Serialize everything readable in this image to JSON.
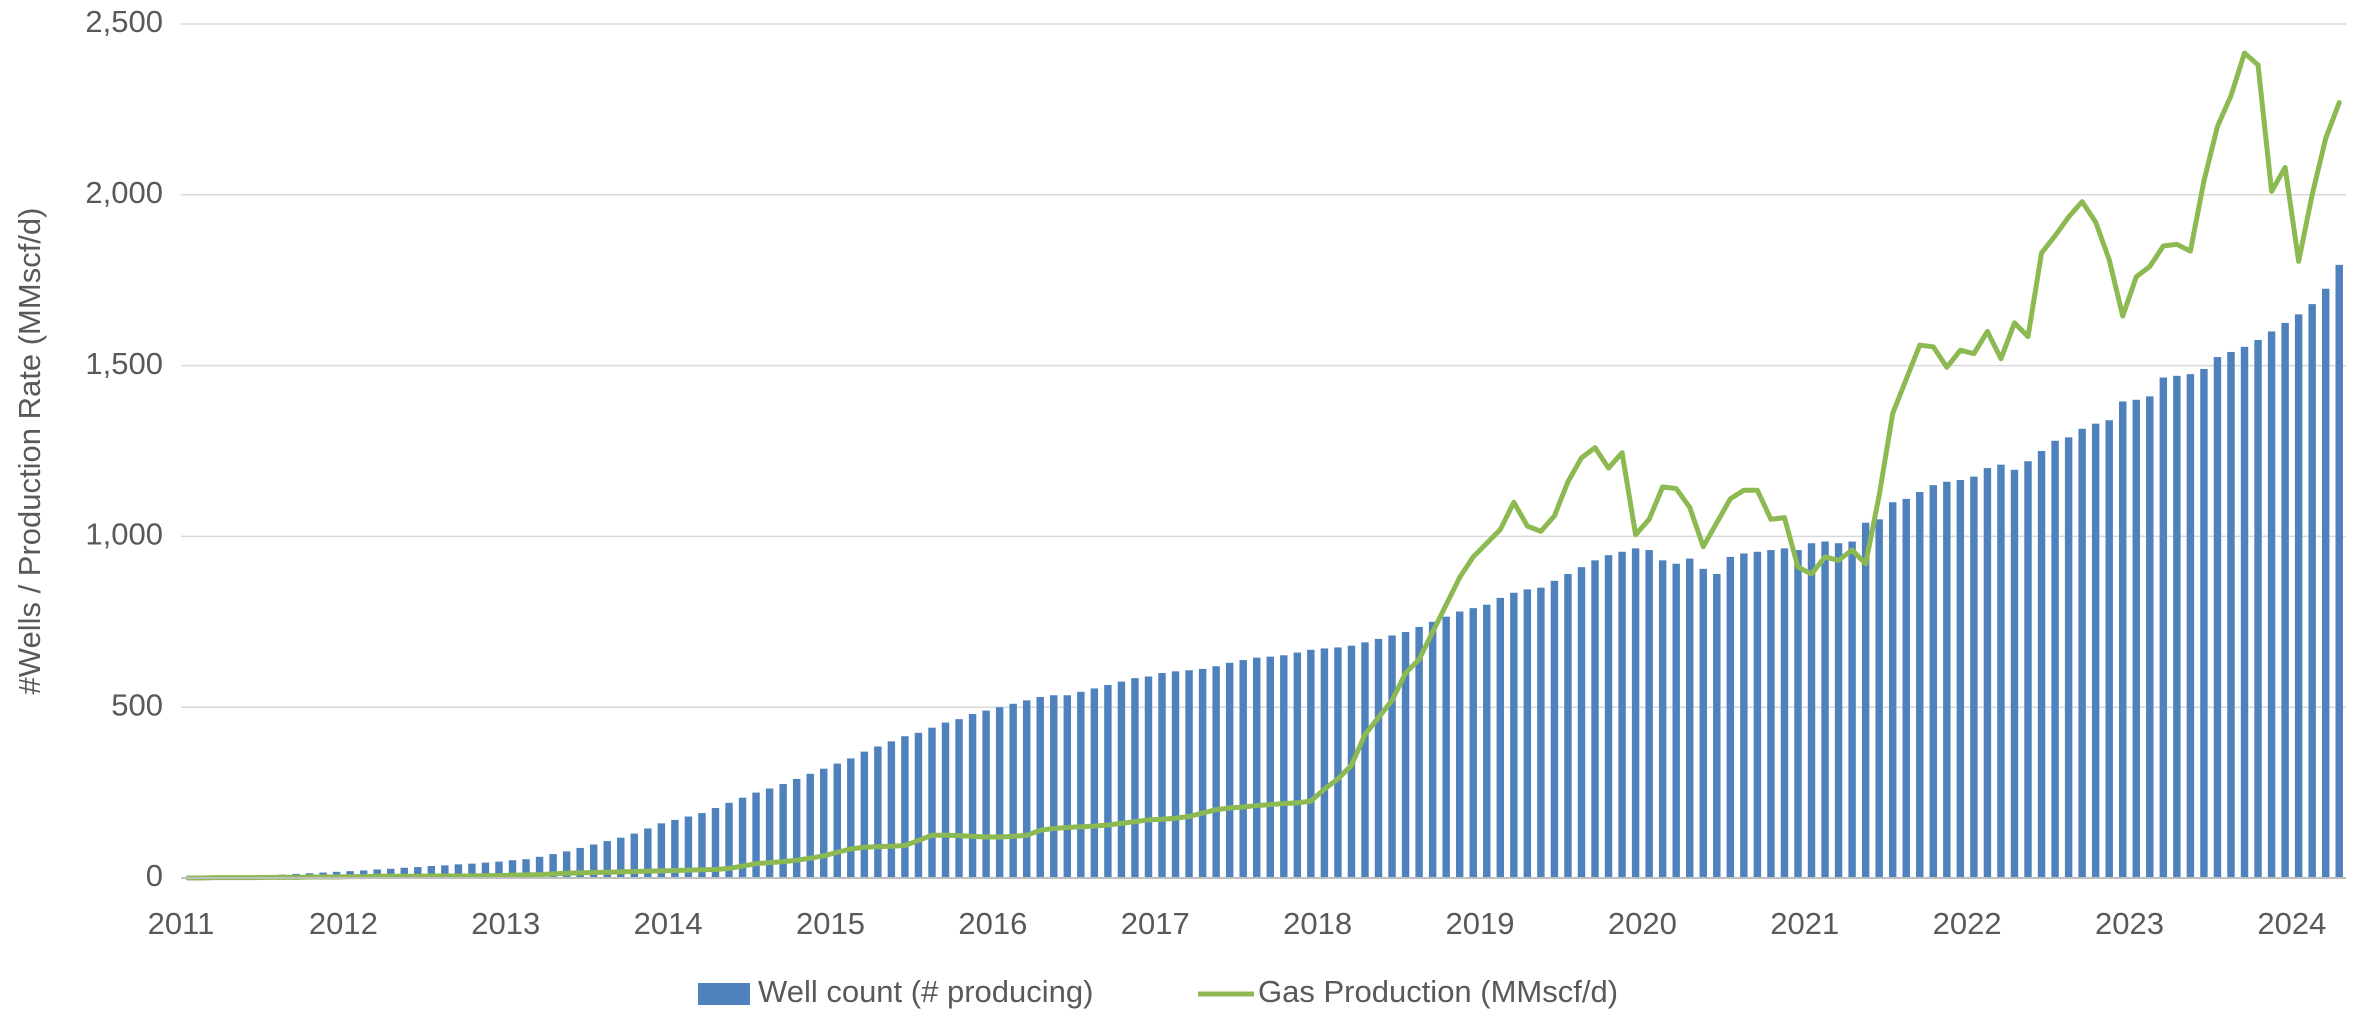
{
  "chart_data": {
    "type": "combo",
    "y_axis_label": "#Wells / Production Rate (MMscf/d)",
    "categories": [
      "2011",
      null,
      null,
      null,
      null,
      null,
      null,
      null,
      null,
      null,
      null,
      null,
      "2012",
      null,
      null,
      null,
      null,
      null,
      null,
      null,
      null,
      null,
      null,
      null,
      "2013",
      null,
      null,
      null,
      null,
      null,
      null,
      null,
      null,
      null,
      null,
      null,
      "2014",
      null,
      null,
      null,
      null,
      null,
      null,
      null,
      null,
      null,
      null,
      null,
      "2015",
      null,
      null,
      null,
      null,
      null,
      null,
      null,
      null,
      null,
      null,
      null,
      "2016",
      null,
      null,
      null,
      null,
      null,
      null,
      null,
      null,
      null,
      null,
      null,
      "2017",
      null,
      null,
      null,
      null,
      null,
      null,
      null,
      null,
      null,
      null,
      null,
      "2018",
      null,
      null,
      null,
      null,
      null,
      null,
      null,
      null,
      null,
      null,
      null,
      "2019",
      null,
      null,
      null,
      null,
      null,
      null,
      null,
      null,
      null,
      null,
      null,
      "2020",
      null,
      null,
      null,
      null,
      null,
      null,
      null,
      null,
      null,
      null,
      null,
      "2021",
      null,
      null,
      null,
      null,
      null,
      null,
      null,
      null,
      null,
      null,
      null,
      "2022",
      null,
      null,
      null,
      null,
      null,
      null,
      null,
      null,
      null,
      null,
      null,
      "2023",
      null,
      null,
      null,
      null,
      null,
      null,
      null,
      null,
      null,
      null,
      null,
      "2024",
      null,
      null,
      null
    ],
    "series": [
      {
        "name": "Well count (# producing)",
        "type": "bar",
        "color": "#4f81bd",
        "values": [
          1,
          2,
          3,
          4,
          5,
          7,
          8,
          10,
          12,
          14,
          16,
          18,
          20,
          22,
          25,
          27,
          30,
          32,
          35,
          37,
          40,
          42,
          45,
          48,
          52,
          55,
          62,
          70,
          78,
          88,
          98,
          108,
          118,
          130,
          145,
          160,
          170,
          180,
          190,
          205,
          220,
          235,
          250,
          262,
          275,
          290,
          305,
          320,
          335,
          350,
          370,
          385,
          400,
          415,
          425,
          440,
          455,
          465,
          480,
          490,
          500,
          510,
          520,
          530,
          535,
          535,
          545,
          555,
          565,
          575,
          585,
          590,
          600,
          605,
          608,
          612,
          620,
          630,
          638,
          645,
          648,
          652,
          660,
          668,
          672,
          675,
          680,
          690,
          700,
          710,
          720,
          735,
          750,
          765,
          780,
          790,
          800,
          820,
          835,
          845,
          850,
          870,
          890,
          910,
          930,
          945,
          955,
          965,
          960,
          930,
          920,
          935,
          905,
          890,
          940,
          950,
          955,
          960,
          965,
          960,
          980,
          985,
          980,
          985,
          1040,
          1050,
          1100,
          1110,
          1130,
          1150,
          1160,
          1165,
          1175,
          1200,
          1210,
          1195,
          1220,
          1250,
          1280,
          1290,
          1315,
          1330,
          1340,
          1395,
          1400,
          1410,
          1465,
          1470,
          1475,
          1490,
          1525,
          1540,
          1555,
          1575,
          1600,
          1625,
          1650,
          1680,
          1725,
          1795
        ]
      },
      {
        "name": "Gas Production (MMscf/d)",
        "type": "line",
        "color": "#8db953",
        "values": [
          0,
          0,
          1,
          1,
          1,
          1,
          2,
          2,
          2,
          3,
          3,
          3,
          4,
          4,
          5,
          5,
          5,
          5,
          6,
          6,
          6,
          6,
          7,
          7,
          8,
          9,
          10,
          12,
          14,
          15,
          16,
          17,
          18,
          19,
          20,
          21,
          22,
          23,
          24,
          25,
          28,
          35,
          42,
          45,
          48,
          52,
          58,
          65,
          75,
          85,
          90,
          92,
          93,
          95,
          110,
          125,
          125,
          124,
          122,
          120,
          120,
          122,
          125,
          140,
          145,
          148,
          150,
          152,
          155,
          160,
          165,
          170,
          172,
          175,
          180,
          190,
          200,
          205,
          208,
          212,
          215,
          218,
          220,
          225,
          260,
          290,
          330,
          420,
          470,
          520,
          600,
          640,
          720,
          800,
          880,
          940,
          980,
          1020,
          1100,
          1030,
          1015,
          1060,
          1160,
          1230,
          1260,
          1200,
          1245,
          1005,
          1050,
          1145,
          1140,
          1085,
          970,
          1040,
          1110,
          1135,
          1135,
          1050,
          1055,
          910,
          890,
          940,
          930,
          960,
          920,
          1120,
          1360,
          1460,
          1560,
          1555,
          1495,
          1545,
          1535,
          1600,
          1520,
          1625,
          1585,
          1830,
          1880,
          1935,
          1980,
          1920,
          1810,
          1645,
          1760,
          1790,
          1850,
          1855,
          1835,
          2040,
          2200,
          2290,
          2415,
          2380,
          2010,
          2080,
          1805,
          2000,
          2165,
          2270
        ]
      }
    ],
    "ylim": [
      0,
      2500
    ],
    "yticks": [
      0,
      500,
      {
        "value": 1000,
        "label": "1,000"
      },
      {
        "value": 1500,
        "label": "1,500"
      },
      {
        "value": 2000,
        "label": "2,000"
      },
      {
        "value": 2500,
        "label": "2,500"
      }
    ],
    "grid": true,
    "legend": "bottom"
  }
}
